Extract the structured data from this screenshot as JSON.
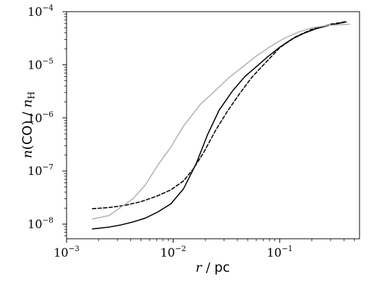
{
  "chart_data": {
    "type": "line",
    "title": "",
    "xlabel": "r / pc",
    "ylabel": "n(CO) / n_H",
    "xlabel_parts": {
      "var": "r",
      "sep": " / ",
      "unit": "pc"
    },
    "ylabel_parts": {
      "n": "n",
      "open": "(",
      "species": "CO",
      "close": ")",
      "sep": " / ",
      "denom": "n",
      "denom_sub": "H"
    },
    "xscale": "log",
    "yscale": "log",
    "xlim": [
      0.001,
      0.56
    ],
    "ylim": [
      5.3e-09,
      0.0001
    ],
    "grid": false,
    "legend": "none",
    "x_ticks": [
      {
        "value": 0.001,
        "base": "10",
        "exp": "−3"
      },
      {
        "value": 0.01,
        "base": "10",
        "exp": "−2"
      },
      {
        "value": 0.1,
        "base": "10",
        "exp": "−1"
      }
    ],
    "y_ticks": [
      {
        "value": 1e-08,
        "base": "10",
        "exp": "−8"
      },
      {
        "value": 1e-07,
        "base": "10",
        "exp": "−7"
      },
      {
        "value": 1e-06,
        "base": "10",
        "exp": "−6"
      },
      {
        "value": 1e-05,
        "base": "10",
        "exp": "−5"
      },
      {
        "value": 0.0001,
        "base": "10",
        "exp": "−4"
      }
    ],
    "series": [
      {
        "color": "#000000",
        "style": "solid",
        "x": [
          0.00175,
          0.0025,
          0.0032,
          0.0042,
          0.0055,
          0.0072,
          0.0095,
          0.0125,
          0.0165,
          0.021,
          0.027,
          0.036,
          0.047,
          0.058,
          0.075,
          0.1,
          0.13,
          0.17,
          0.22,
          0.3,
          0.42
        ],
        "y": [
          8.1e-09,
          8.8e-09,
          9.6e-09,
          1.1e-08,
          1.3e-08,
          1.7e-08,
          2.4e-08,
          4.6e-08,
          1.4e-07,
          4.8e-07,
          1.4e-06,
          3.2e-06,
          6e-06,
          8.6e-06,
          1.35e-05,
          2.15e-05,
          3.05e-05,
          3.95e-05,
          4.8e-05,
          5.6e-05,
          6.4e-05
        ]
      },
      {
        "color": "#000000",
        "style": "dashed",
        "x": [
          0.00175,
          0.0025,
          0.0035,
          0.005,
          0.007,
          0.0095,
          0.0125,
          0.0155,
          0.0195,
          0.025,
          0.032,
          0.042,
          0.055,
          0.072,
          0.1,
          0.14,
          0.2,
          0.3,
          0.42
        ],
        "y": [
          1.95e-08,
          2.05e-08,
          2.25e-08,
          2.65e-08,
          3.35e-08,
          4.4e-08,
          6.5e-08,
          1.1e-07,
          2.3e-07,
          5.8e-07,
          1.3e-06,
          2.85e-06,
          5.9e-06,
          1.05e-05,
          2.1e-05,
          3.35e-05,
          4.65e-05,
          5.8e-05,
          6.5e-05
        ]
      },
      {
        "color": "#b3b3b3",
        "style": "solid",
        "x": [
          0.00175,
          0.0025,
          0.0032,
          0.0042,
          0.0055,
          0.0072,
          0.0095,
          0.0125,
          0.018,
          0.025,
          0.033,
          0.045,
          0.06,
          0.08,
          0.11,
          0.15,
          0.2,
          0.28,
          0.45
        ],
        "y": [
          1.25e-08,
          1.45e-08,
          2.05e-08,
          3e-08,
          5.5e-08,
          1.3e-07,
          2.8e-07,
          7e-07,
          1.8e-06,
          3.3e-06,
          5.6e-06,
          9.2e-06,
          1.45e-05,
          2.15e-05,
          3.15e-05,
          4.15e-05,
          4.95e-05,
          5.5e-05,
          5.8e-05
        ]
      }
    ]
  }
}
